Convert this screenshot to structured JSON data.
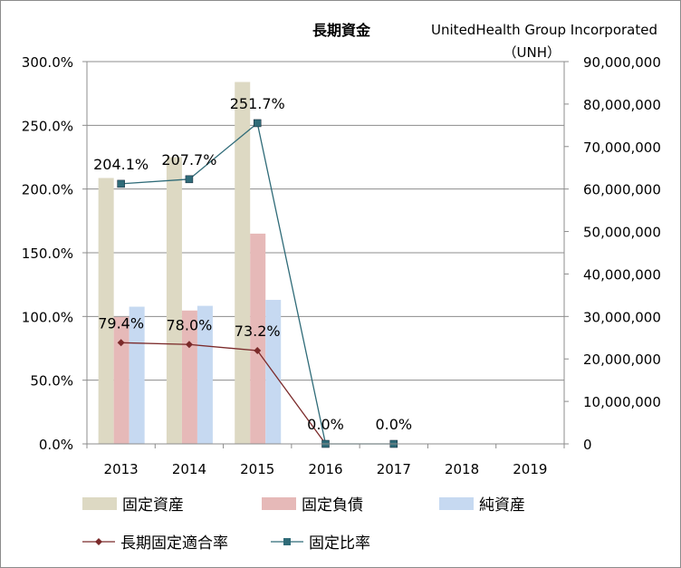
{
  "chart_data": {
    "type": "bar",
    "title": "長期資金",
    "company": "UnitedHealth Group Incorporated",
    "ticker": "（UNH）",
    "categories": [
      "2013",
      "2014",
      "2015",
      "2016",
      "2017",
      "2018",
      "2019"
    ],
    "left_axis": {
      "min": 0,
      "max": 3.0,
      "step": 0.5,
      "ticks": [
        "0.0%",
        "50.0%",
        "100.0%",
        "150.0%",
        "200.0%",
        "250.0%",
        "300.0%"
      ]
    },
    "right_axis": {
      "min": 0,
      "max": 90000000,
      "step": 10000000,
      "ticks": [
        "0",
        "10,000,000",
        "20,000,000",
        "30,000,000",
        "40,000,000",
        "50,000,000",
        "60,000,000",
        "70,000,000",
        "80,000,000",
        "90,000,000"
      ]
    },
    "grid": true,
    "legend_position": "bottom",
    "bar_series": [
      {
        "name": "固定資産",
        "color": "#ddd9c3",
        "values": [
          62600000,
          67500000,
          85200000,
          null,
          null,
          null,
          null
        ]
      },
      {
        "name": "固定負債",
        "color": "#e6b9b8",
        "values": [
          29900000,
          31400000,
          49500000,
          null,
          null,
          null,
          null
        ]
      },
      {
        "name": "純資産",
        "color": "#c6d9f1",
        "values": [
          32300000,
          32500000,
          33900000,
          null,
          null,
          null,
          null
        ]
      }
    ],
    "line_series": [
      {
        "name": "長期固定適合率",
        "color": "#7b2a2a",
        "marker": "diamond",
        "values": [
          0.794,
          0.78,
          0.732,
          0.0,
          null,
          null,
          null
        ],
        "labels": [
          "79.4%",
          "78.0%",
          "73.2%",
          "",
          "",
          "",
          ""
        ]
      },
      {
        "name": "固定比率",
        "color": "#2f6b78",
        "marker": "square",
        "values": [
          2.041,
          2.077,
          2.517,
          0.0,
          0.0,
          null,
          null
        ],
        "labels": [
          "204.1%",
          "207.7%",
          "251.7%",
          "0.0%",
          "0.0%",
          "",
          ""
        ]
      }
    ]
  }
}
